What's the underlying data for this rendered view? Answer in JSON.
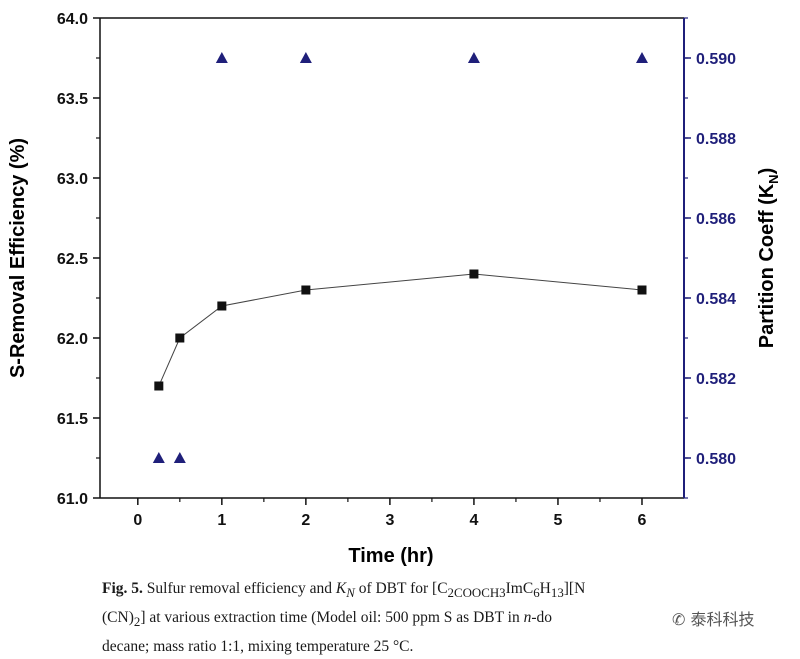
{
  "chart_data": {
    "type": "scatter",
    "xlabel": "Time (hr)",
    "ylabel_left": "S-Removal Efficiency (%)",
    "ylabel_right_main": "Partition Coeff (K",
    "ylabel_right_sub": "N",
    "ylabel_right_close": ")",
    "xlim": [
      -0.45,
      6.5
    ],
    "ylim_left": [
      61.0,
      64.0
    ],
    "ylim_right": [
      0.579,
      0.591
    ],
    "x_ticks": [
      "0",
      "1",
      "2",
      "3",
      "4",
      "5",
      "6"
    ],
    "y_left_ticks": [
      "61.0",
      "61.5",
      "62.0",
      "62.5",
      "63.0",
      "63.5",
      "64.0"
    ],
    "y_right_ticks": [
      "0.580",
      "0.582",
      "0.584",
      "0.586",
      "0.588",
      "0.590"
    ],
    "grid": false,
    "series": [
      {
        "axis": "left",
        "marker": "square",
        "line": true,
        "color": "#111111",
        "x": [
          0.25,
          0.5,
          1,
          2,
          4,
          6
        ],
        "y": [
          61.7,
          62.0,
          62.2,
          62.3,
          62.4,
          62.3
        ]
      },
      {
        "axis": "right",
        "marker": "triangle",
        "line": false,
        "color": "#1f1f7a",
        "x": [
          0.25,
          0.5,
          1,
          2,
          4,
          6
        ],
        "y": [
          0.58,
          0.58,
          0.59,
          0.59,
          0.59,
          0.59
        ]
      }
    ]
  },
  "caption": {
    "fig_label": "Fig. 5.",
    "line1_a": " Sulfur removal efficiency and ",
    "kn_main": "K",
    "kn_sub": "N",
    "line1_b": " of DBT for [C",
    "sub1": "2COOCH3",
    "line1_c": "ImC",
    "sub2": "6",
    "line1_d": "H",
    "sub3": "13",
    "line1_e": "][N",
    "line2_a": "(CN)",
    "sub4": "2",
    "line2_b": "] at various extraction time (Model oil: 500 ppm S as DBT in ",
    "line2_italic": "n",
    "line2_c": "-do",
    "line3": "decane; mass ratio 1:1, mixing temperature 25 °C."
  },
  "watermark": "泰科科技",
  "colors": {
    "left_axis": "#111111",
    "right_axis": "#1f1f7a"
  }
}
